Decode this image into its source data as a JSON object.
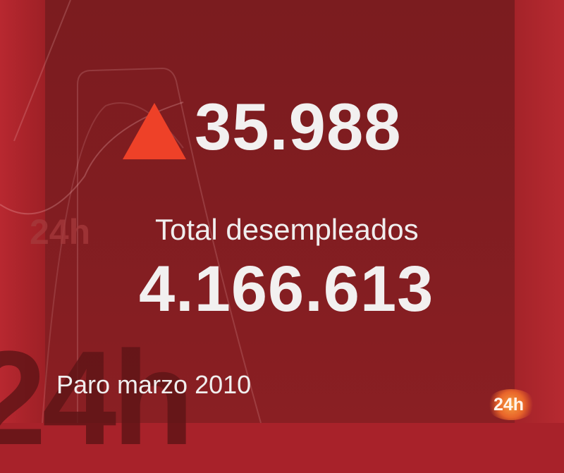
{
  "graphic": {
    "change_value": "35.988",
    "change_direction": "up",
    "label": "Total desempleados",
    "total_value": "4.166.613",
    "caption": "Paro marzo 2010",
    "channel_logo": "24h",
    "watermark": "24h"
  },
  "colors": {
    "triangle": "#ee4128",
    "panel": "#7b1c1f",
    "background": "#a8222a",
    "text": "#f2f0f0"
  }
}
